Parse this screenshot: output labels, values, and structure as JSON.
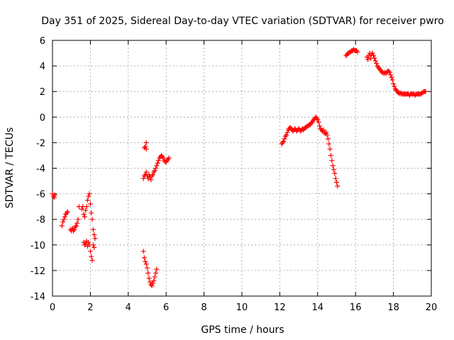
{
  "chart_data": {
    "type": "scatter",
    "title": "Day 351 of 2025, Sidereal Day-to-day VTEC variation (SDTVAR) for receiver pwro",
    "xlabel": "GPS time / hours",
    "ylabel": "SDTVAR / TECUs",
    "xlim": [
      0,
      20
    ],
    "ylim": [
      -14,
      6
    ],
    "x_ticks": [
      0,
      2,
      4,
      6,
      8,
      10,
      12,
      14,
      16,
      18,
      20
    ],
    "y_ticks": [
      -14,
      -12,
      -10,
      -8,
      -6,
      -4,
      -2,
      0,
      2,
      4,
      6
    ],
    "grid": true,
    "marker": "+",
    "color": "#ff0000",
    "series": [
      {
        "name": "SDTVAR",
        "points": [
          [
            0.0,
            -6.0
          ],
          [
            0.05,
            -6.2
          ],
          [
            0.1,
            -6.3
          ],
          [
            0.12,
            -6.1
          ],
          [
            0.5,
            -8.5
          ],
          [
            0.55,
            -8.2
          ],
          [
            0.6,
            -8.0
          ],
          [
            0.65,
            -7.8
          ],
          [
            0.7,
            -7.6
          ],
          [
            0.75,
            -7.5
          ],
          [
            0.8,
            -7.4
          ],
          [
            0.95,
            -8.8
          ],
          [
            1.0,
            -8.9
          ],
          [
            1.05,
            -8.7
          ],
          [
            1.1,
            -8.9
          ],
          [
            1.15,
            -8.8
          ],
          [
            1.2,
            -8.6
          ],
          [
            1.25,
            -8.5
          ],
          [
            1.3,
            -8.3
          ],
          [
            1.35,
            -8.0
          ],
          [
            1.4,
            -7.0
          ],
          [
            1.55,
            -7.2
          ],
          [
            1.6,
            -7.0
          ],
          [
            1.65,
            -7.6
          ],
          [
            1.7,
            -7.8
          ],
          [
            1.75,
            -7.3
          ],
          [
            1.8,
            -7.0
          ],
          [
            1.85,
            -6.5
          ],
          [
            1.9,
            -6.2
          ],
          [
            1.95,
            -6.0
          ],
          [
            2.0,
            -6.8
          ],
          [
            2.05,
            -7.5
          ],
          [
            2.1,
            -8.0
          ],
          [
            2.15,
            -8.8
          ],
          [
            2.2,
            -9.2
          ],
          [
            2.25,
            -9.5
          ],
          [
            1.65,
            -9.8
          ],
          [
            1.7,
            -10.0
          ],
          [
            1.75,
            -9.9
          ],
          [
            1.8,
            -9.7
          ],
          [
            1.85,
            -10.1
          ],
          [
            1.9,
            -9.8
          ],
          [
            1.95,
            -10.0
          ],
          [
            2.0,
            -10.5
          ],
          [
            2.05,
            -10.9
          ],
          [
            2.1,
            -11.2
          ],
          [
            2.15,
            -10.0
          ],
          [
            2.2,
            -10.2
          ],
          [
            4.8,
            -10.5
          ],
          [
            4.85,
            -11.0
          ],
          [
            4.9,
            -11.3
          ],
          [
            4.95,
            -11.5
          ],
          [
            5.0,
            -11.8
          ],
          [
            5.05,
            -12.2
          ],
          [
            5.1,
            -12.6
          ],
          [
            5.15,
            -12.9
          ],
          [
            5.2,
            -13.1
          ],
          [
            5.25,
            -13.2
          ],
          [
            5.3,
            -13.0
          ],
          [
            5.35,
            -12.8
          ],
          [
            5.4,
            -12.5
          ],
          [
            5.45,
            -12.2
          ],
          [
            5.5,
            -11.9
          ],
          [
            4.85,
            -2.4
          ],
          [
            4.9,
            -2.3
          ],
          [
            4.95,
            -2.0
          ],
          [
            4.95,
            -2.5
          ],
          [
            4.8,
            -4.8
          ],
          [
            4.85,
            -4.6
          ],
          [
            4.9,
            -4.5
          ],
          [
            4.95,
            -4.3
          ],
          [
            5.0,
            -4.6
          ],
          [
            5.05,
            -4.8
          ],
          [
            5.1,
            -4.5
          ],
          [
            5.15,
            -4.7
          ],
          [
            5.2,
            -4.9
          ],
          [
            5.25,
            -4.6
          ],
          [
            5.3,
            -4.5
          ],
          [
            5.35,
            -4.3
          ],
          [
            5.4,
            -4.2
          ],
          [
            5.45,
            -4.0
          ],
          [
            5.5,
            -3.8
          ],
          [
            5.55,
            -3.6
          ],
          [
            5.6,
            -3.4
          ],
          [
            5.65,
            -3.2
          ],
          [
            5.7,
            -3.1
          ],
          [
            5.75,
            -3.0
          ],
          [
            5.8,
            -3.1
          ],
          [
            5.85,
            -3.2
          ],
          [
            5.9,
            -3.4
          ],
          [
            5.95,
            -3.5
          ],
          [
            6.0,
            -3.5
          ],
          [
            6.05,
            -3.4
          ],
          [
            6.1,
            -3.3
          ],
          [
            6.15,
            -3.2
          ],
          [
            12.1,
            -2.1
          ],
          [
            12.15,
            -2.0
          ],
          [
            12.2,
            -1.9
          ],
          [
            12.25,
            -1.7
          ],
          [
            12.3,
            -1.5
          ],
          [
            12.35,
            -1.4
          ],
          [
            12.4,
            -1.2
          ],
          [
            12.45,
            -1.0
          ],
          [
            12.5,
            -0.9
          ],
          [
            12.55,
            -0.8
          ],
          [
            12.6,
            -0.9
          ],
          [
            12.65,
            -1.0
          ],
          [
            12.7,
            -1.1
          ],
          [
            12.75,
            -1.0
          ],
          [
            12.8,
            -0.9
          ],
          [
            12.85,
            -1.0
          ],
          [
            12.9,
            -1.1
          ],
          [
            12.95,
            -1.0
          ],
          [
            13.0,
            -0.9
          ],
          [
            13.05,
            -1.0
          ],
          [
            13.1,
            -1.1
          ],
          [
            13.15,
            -1.0
          ],
          [
            13.2,
            -0.9
          ],
          [
            13.25,
            -1.0
          ],
          [
            13.3,
            -0.9
          ],
          [
            13.35,
            -0.8
          ],
          [
            13.4,
            -0.8
          ],
          [
            13.45,
            -0.7
          ],
          [
            13.5,
            -0.7
          ],
          [
            13.55,
            -0.6
          ],
          [
            13.6,
            -0.6
          ],
          [
            13.65,
            -0.5
          ],
          [
            13.7,
            -0.4
          ],
          [
            13.75,
            -0.3
          ],
          [
            13.8,
            -0.2
          ],
          [
            13.85,
            -0.1
          ],
          [
            13.9,
            0.0
          ],
          [
            13.95,
            -0.1
          ],
          [
            14.0,
            -0.2
          ],
          [
            14.05,
            -0.4
          ],
          [
            14.1,
            -0.7
          ],
          [
            14.15,
            -0.9
          ],
          [
            14.2,
            -1.0
          ],
          [
            14.25,
            -1.1
          ],
          [
            14.3,
            -1.0
          ],
          [
            14.35,
            -1.2
          ],
          [
            14.4,
            -1.3
          ],
          [
            14.45,
            -1.2
          ],
          [
            14.5,
            -1.4
          ],
          [
            14.55,
            -1.7
          ],
          [
            14.6,
            -2.1
          ],
          [
            14.65,
            -2.5
          ],
          [
            14.7,
            -3.0
          ],
          [
            14.75,
            -3.4
          ],
          [
            14.8,
            -3.8
          ],
          [
            14.85,
            -4.1
          ],
          [
            14.9,
            -4.4
          ],
          [
            14.95,
            -4.8
          ],
          [
            15.0,
            -5.1
          ],
          [
            15.05,
            -5.4
          ],
          [
            15.5,
            4.8
          ],
          [
            15.55,
            4.9
          ],
          [
            15.6,
            5.0
          ],
          [
            15.65,
            5.0
          ],
          [
            15.7,
            5.1
          ],
          [
            15.75,
            5.1
          ],
          [
            15.8,
            5.2
          ],
          [
            15.85,
            5.2
          ],
          [
            15.9,
            5.3
          ],
          [
            15.95,
            5.2
          ],
          [
            16.0,
            5.2
          ],
          [
            16.05,
            5.2
          ],
          [
            16.1,
            5.1
          ],
          [
            16.6,
            4.7
          ],
          [
            16.65,
            4.5
          ],
          [
            16.7,
            4.8
          ],
          [
            16.75,
            5.0
          ],
          [
            16.8,
            4.6
          ],
          [
            16.85,
            4.9
          ],
          [
            16.9,
            5.0
          ],
          [
            16.95,
            4.8
          ],
          [
            17.0,
            4.6
          ],
          [
            17.05,
            4.4
          ],
          [
            17.1,
            4.2
          ],
          [
            17.15,
            4.0
          ],
          [
            17.2,
            3.9
          ],
          [
            17.25,
            3.8
          ],
          [
            17.3,
            3.7
          ],
          [
            17.35,
            3.6
          ],
          [
            17.4,
            3.5
          ],
          [
            17.45,
            3.5
          ],
          [
            17.5,
            3.4
          ],
          [
            17.55,
            3.5
          ],
          [
            17.6,
            3.4
          ],
          [
            17.65,
            3.5
          ],
          [
            17.7,
            3.6
          ],
          [
            17.75,
            3.6
          ],
          [
            17.8,
            3.5
          ],
          [
            17.85,
            3.3
          ],
          [
            17.9,
            3.1
          ],
          [
            17.95,
            2.9
          ],
          [
            18.0,
            2.6
          ],
          [
            18.05,
            2.4
          ],
          [
            18.1,
            2.2
          ],
          [
            18.15,
            2.1
          ],
          [
            18.2,
            2.0
          ],
          [
            18.25,
            1.9
          ],
          [
            18.3,
            1.9
          ],
          [
            18.35,
            1.8
          ],
          [
            18.4,
            1.9
          ],
          [
            18.45,
            1.8
          ],
          [
            18.5,
            1.8
          ],
          [
            18.55,
            1.8
          ],
          [
            18.6,
            1.8
          ],
          [
            18.65,
            1.8
          ],
          [
            18.7,
            1.8
          ],
          [
            18.75,
            1.8
          ],
          [
            18.8,
            1.8
          ],
          [
            18.85,
            1.7
          ],
          [
            18.9,
            1.8
          ],
          [
            18.95,
            1.8
          ],
          [
            19.0,
            1.8
          ],
          [
            19.05,
            1.8
          ],
          [
            19.1,
            1.8
          ],
          [
            19.15,
            1.7
          ],
          [
            19.2,
            1.8
          ],
          [
            19.25,
            1.8
          ],
          [
            19.3,
            1.8
          ],
          [
            19.35,
            1.8
          ],
          [
            19.4,
            1.8
          ],
          [
            19.45,
            1.8
          ],
          [
            19.5,
            1.9
          ],
          [
            19.55,
            1.9
          ],
          [
            19.6,
            2.0
          ],
          [
            19.65,
            2.0
          ],
          [
            19.7,
            2.0
          ]
        ]
      }
    ]
  }
}
